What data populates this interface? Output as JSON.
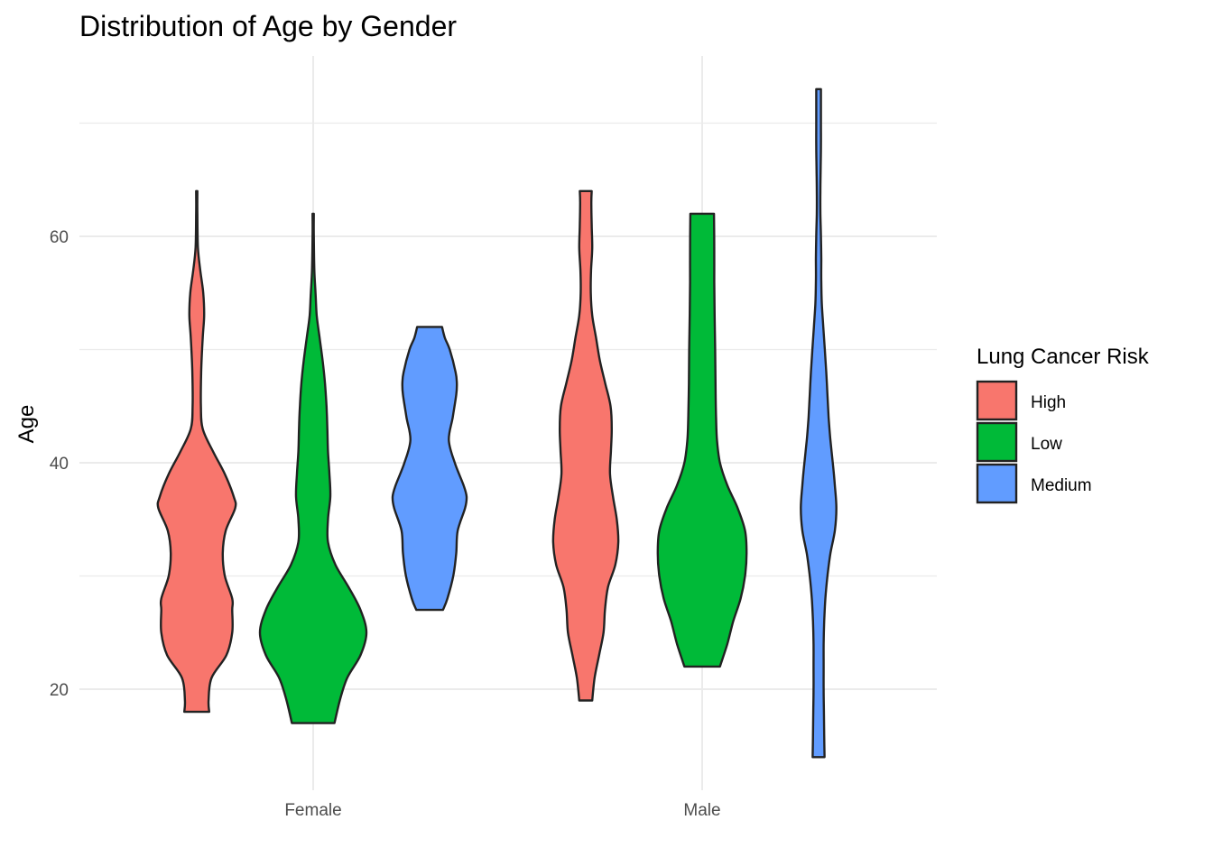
{
  "chart_data": {
    "type": "violin",
    "title": "Distribution of Age by Gender",
    "xlabel": "",
    "ylabel": "Age",
    "categories": [
      "Female",
      "Male"
    ],
    "ylim": [
      11,
      76
    ],
    "yticks": [
      20,
      40,
      60
    ],
    "grid": true,
    "legend": {
      "title": "Lung Cancer Risk",
      "position": "right",
      "entries": [
        "High",
        "Low",
        "Medium"
      ]
    },
    "series": [
      {
        "name": "High",
        "color": "#f8766d",
        "groups": [
          {
            "category": "Female",
            "min": 18,
            "max": 64,
            "density": [
              [
                18,
                0.42
              ],
              [
                19,
                0.4
              ],
              [
                21,
                0.5
              ],
              [
                23,
                1.0
              ],
              [
                25,
                1.2
              ],
              [
                27,
                1.2
              ],
              [
                28,
                1.2
              ],
              [
                30,
                0.95
              ],
              [
                32,
                0.88
              ],
              [
                34,
                0.98
              ],
              [
                36,
                1.3
              ],
              [
                37,
                1.25
              ],
              [
                39,
                0.95
              ],
              [
                41,
                0.55
              ],
              [
                43,
                0.2
              ],
              [
                45,
                0.14
              ],
              [
                48,
                0.15
              ],
              [
                51,
                0.2
              ],
              [
                53,
                0.25
              ],
              [
                55,
                0.22
              ],
              [
                57,
                0.12
              ],
              [
                59,
                0.04
              ],
              [
                62,
                0.02
              ],
              [
                64,
                0.02
              ]
            ]
          },
          {
            "category": "Male",
            "min": 19,
            "max": 64,
            "density": [
              [
                19,
                0.22
              ],
              [
                21,
                0.3
              ],
              [
                23,
                0.45
              ],
              [
                25,
                0.6
              ],
              [
                27,
                0.65
              ],
              [
                29,
                0.75
              ],
              [
                31,
                1.0
              ],
              [
                33,
                1.1
              ],
              [
                35,
                1.05
              ],
              [
                37,
                0.92
              ],
              [
                39,
                0.82
              ],
              [
                41,
                0.85
              ],
              [
                43,
                0.88
              ],
              [
                45,
                0.84
              ],
              [
                47,
                0.66
              ],
              [
                49,
                0.48
              ],
              [
                51,
                0.35
              ],
              [
                53,
                0.22
              ],
              [
                55,
                0.17
              ],
              [
                57,
                0.18
              ],
              [
                59,
                0.22
              ],
              [
                61,
                0.2
              ],
              [
                63,
                0.19
              ],
              [
                64,
                0.2
              ]
            ]
          }
        ]
      },
      {
        "name": "Low",
        "color": "#00ba38",
        "groups": [
          {
            "category": "Female",
            "min": 17,
            "max": 62,
            "density": [
              [
                17,
                0.72
              ],
              [
                19,
                0.9
              ],
              [
                21,
                1.15
              ],
              [
                23,
                1.6
              ],
              [
                25,
                1.8
              ],
              [
                27,
                1.6
              ],
              [
                29,
                1.2
              ],
              [
                31,
                0.75
              ],
              [
                33,
                0.5
              ],
              [
                35,
                0.5
              ],
              [
                37,
                0.58
              ],
              [
                39,
                0.55
              ],
              [
                41,
                0.5
              ],
              [
                43,
                0.48
              ],
              [
                45,
                0.45
              ],
              [
                47,
                0.4
              ],
              [
                49,
                0.32
              ],
              [
                51,
                0.22
              ],
              [
                53,
                0.12
              ],
              [
                55,
                0.08
              ],
              [
                57,
                0.04
              ],
              [
                60,
                0.02
              ],
              [
                62,
                0.02
              ]
            ]
          },
          {
            "category": "Male",
            "min": 22,
            "max": 62,
            "density": [
              [
                22,
                0.6
              ],
              [
                24,
                0.85
              ],
              [
                26,
                1.05
              ],
              [
                28,
                1.3
              ],
              [
                30,
                1.45
              ],
              [
                32,
                1.5
              ],
              [
                34,
                1.45
              ],
              [
                36,
                1.2
              ],
              [
                38,
                0.85
              ],
              [
                40,
                0.6
              ],
              [
                42,
                0.5
              ],
              [
                44,
                0.47
              ],
              [
                47,
                0.45
              ],
              [
                50,
                0.44
              ],
              [
                53,
                0.42
              ],
              [
                56,
                0.41
              ],
              [
                59,
                0.41
              ],
              [
                62,
                0.4
              ]
            ]
          }
        ]
      },
      {
        "name": "Medium",
        "color": "#619cff",
        "groups": [
          {
            "category": "Female",
            "min": 27,
            "max": 52,
            "density": [
              [
                27,
                0.45
              ],
              [
                28,
                0.6
              ],
              [
                30,
                0.8
              ],
              [
                32,
                0.9
              ],
              [
                34,
                0.95
              ],
              [
                36,
                1.2
              ],
              [
                37,
                1.25
              ],
              [
                38,
                1.15
              ],
              [
                40,
                0.85
              ],
              [
                42,
                0.65
              ],
              [
                44,
                0.78
              ],
              [
                46,
                0.9
              ],
              [
                47,
                0.92
              ],
              [
                48,
                0.88
              ],
              [
                50,
                0.68
              ],
              [
                51,
                0.52
              ],
              [
                52,
                0.42
              ]
            ]
          },
          {
            "category": "Male",
            "min": 14,
            "max": 73,
            "density": [
              [
                14,
                0.2
              ],
              [
                16,
                0.19
              ],
              [
                18,
                0.18
              ],
              [
                20,
                0.17
              ],
              [
                22,
                0.17
              ],
              [
                24,
                0.17
              ],
              [
                26,
                0.19
              ],
              [
                28,
                0.23
              ],
              [
                30,
                0.3
              ],
              [
                32,
                0.4
              ],
              [
                34,
                0.55
              ],
              [
                36,
                0.6
              ],
              [
                38,
                0.55
              ],
              [
                40,
                0.48
              ],
              [
                42,
                0.4
              ],
              [
                44,
                0.34
              ],
              [
                46,
                0.3
              ],
              [
                48,
                0.26
              ],
              [
                50,
                0.21
              ],
              [
                52,
                0.16
              ],
              [
                54,
                0.11
              ],
              [
                56,
                0.09
              ],
              [
                58,
                0.09
              ],
              [
                60,
                0.08
              ],
              [
                62,
                0.06
              ],
              [
                64,
                0.06
              ],
              [
                66,
                0.07
              ],
              [
                68,
                0.08
              ],
              [
                70,
                0.08
              ],
              [
                73,
                0.08
              ]
            ]
          }
        ]
      }
    ]
  }
}
